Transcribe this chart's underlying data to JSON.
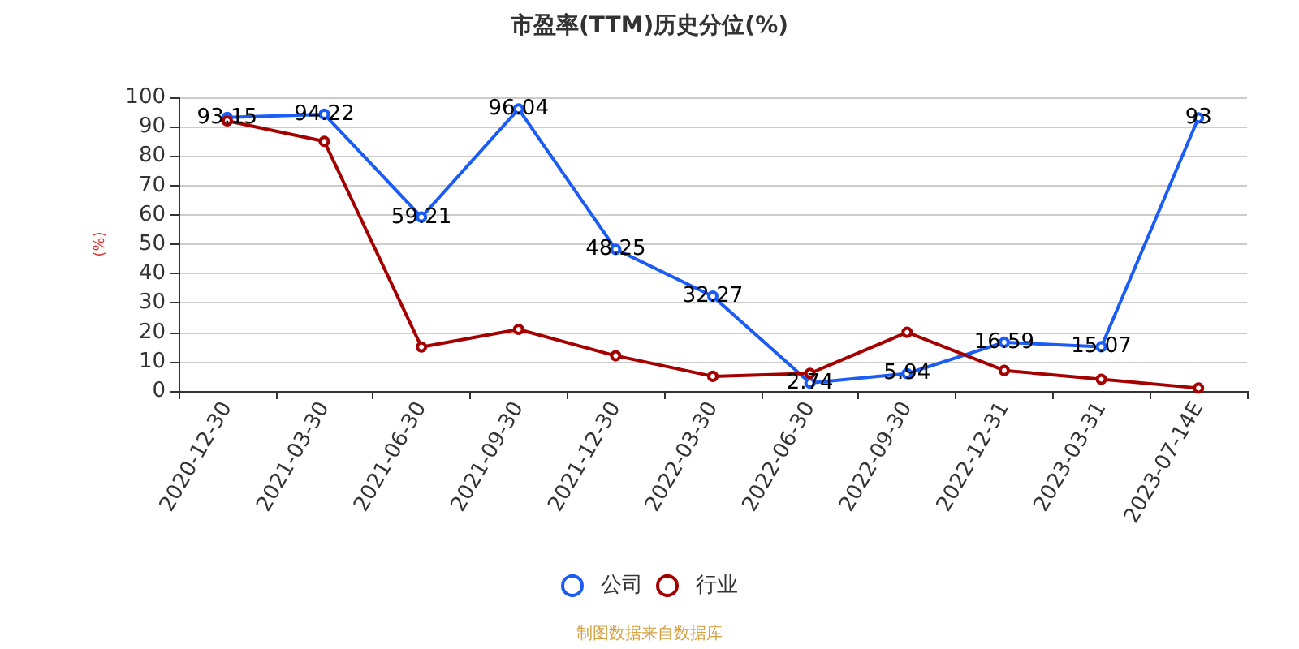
{
  "chart_data": {
    "type": "line",
    "title": "市盈率(TTM)历史分位(%)",
    "ylabel": "(%)",
    "categories": [
      "2020-12-30",
      "2021-03-30",
      "2021-06-30",
      "2021-09-30",
      "2021-12-30",
      "2022-03-30",
      "2022-06-30",
      "2022-09-30",
      "2022-12-31",
      "2023-03-31",
      "2023-07-14E"
    ],
    "series": [
      {
        "name": "公司",
        "color": "#1b5cf5",
        "values": [
          93.15,
          94.22,
          59.21,
          96.04,
          48.25,
          32.27,
          2.74,
          5.94,
          16.59,
          15.07,
          93
        ],
        "data_labels": true
      },
      {
        "name": "行业",
        "color": "#a50000",
        "values": [
          92,
          85,
          15,
          21,
          12,
          5,
          6,
          20,
          7,
          4,
          1
        ]
      }
    ],
    "ylim": [
      0,
      100
    ],
    "yticks": [
      0,
      10,
      20,
      30,
      40,
      50,
      60,
      70,
      80,
      90,
      100
    ],
    "grid": "y",
    "legend": "bottom",
    "marker": "circle",
    "line_style": "solid",
    "annotations": [
      "制图数据来自数据库"
    ]
  }
}
